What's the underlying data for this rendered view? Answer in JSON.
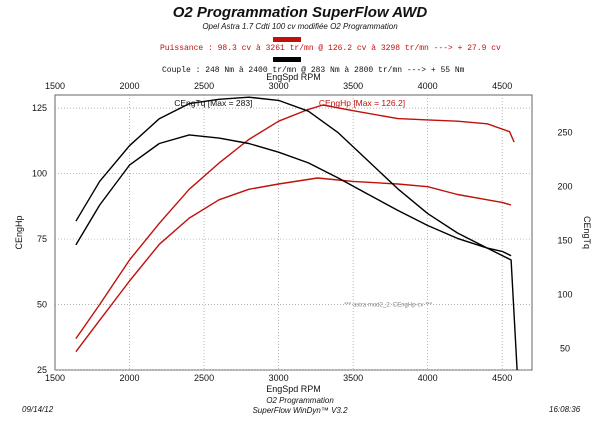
{
  "header": {
    "title": "O2 Programmation SuperFlow AWD",
    "subtitle": "Opel Astra 1.7 Cdti 100 cv modifiée O2 Programmation",
    "power_line": "Puissance : 98.3 cv à 3261 tr/mn  @  126.2 cv à 3298 tr/mn   ---> + 27.9 cv",
    "torque_line": "Couple : 248 Nm à 2400 tr/mn  @  283 Nm à 2800 tr/mn   ---> + 55 Nm",
    "power_color": "#c0100c",
    "torque_color": "#000000"
  },
  "footer": {
    "date": "09/14/12",
    "center_line1": "O2 Programmation",
    "center_line2": "SuperFlow WinDyn™ V3.2",
    "time": "16:08:36"
  },
  "chart_data": {
    "type": "line",
    "xlabel": "EngSpd RPM",
    "ylabel_left": "CEngHp",
    "ylabel_right": "CEngTq",
    "xlim": [
      1500,
      4700
    ],
    "ylim_left": [
      25,
      130
    ],
    "ylim_right": [
      30,
      285
    ],
    "x_ticks": [
      1500,
      2000,
      2500,
      3000,
      3500,
      4000,
      4500
    ],
    "y_ticks_left": [
      25,
      50,
      75,
      100,
      125
    ],
    "y_ticks_right": [
      50,
      100,
      150,
      200,
      250
    ],
    "grid": true,
    "annotations": {
      "tq_max": "CEngTq [Max = 283]",
      "hp_max": "CEngHp [Max = 126.2]",
      "legend_note": "*** astra mod2_2: CEngHp-cv    ***"
    },
    "series": [
      {
        "name": "CEngHp",
        "axis": "left",
        "color": "#c0100c",
        "run": "modified",
        "x": [
          1640,
          1800,
          2000,
          2200,
          2400,
          2600,
          2800,
          3000,
          3200,
          3298,
          3500,
          3800,
          4000,
          4200,
          4400,
          4550,
          4580
        ],
        "y": [
          37,
          50,
          67,
          81,
          94,
          104,
          113,
          120,
          124.5,
          126.2,
          124,
          121,
          120.5,
          120,
          119,
          116,
          112
        ]
      },
      {
        "name": "CEngHp",
        "axis": "left",
        "color": "#c0100c",
        "run": "stock",
        "x": [
          1640,
          1800,
          2000,
          2200,
          2400,
          2600,
          2800,
          3000,
          3261,
          3500,
          3800,
          4000,
          4200,
          4400,
          4500,
          4560
        ],
        "y": [
          32,
          44,
          59,
          73,
          83,
          90,
          94,
          96,
          98.3,
          97,
          96,
          95,
          92,
          90,
          89,
          88
        ]
      },
      {
        "name": "CEngTq",
        "axis": "right",
        "color": "#000000",
        "run": "modified",
        "x": [
          1640,
          1800,
          2000,
          2200,
          2400,
          2600,
          2800,
          3000,
          3200,
          3400,
          3600,
          3800,
          4000,
          4200,
          4400,
          4560,
          4600
        ],
        "y": [
          168,
          205,
          238,
          263,
          277,
          281,
          283,
          280,
          270,
          250,
          224,
          198,
          175,
          157,
          143,
          132,
          30
        ]
      },
      {
        "name": "CEngTq",
        "axis": "right",
        "color": "#000000",
        "run": "stock",
        "x": [
          1640,
          1800,
          2000,
          2200,
          2400,
          2600,
          2800,
          3000,
          3200,
          3400,
          3600,
          3800,
          4000,
          4200,
          4400,
          4500,
          4560
        ],
        "y": [
          146,
          183,
          220,
          240,
          248,
          245,
          240,
          232,
          222,
          208,
          193,
          178,
          164,
          152,
          143,
          140,
          136
        ]
      }
    ]
  }
}
